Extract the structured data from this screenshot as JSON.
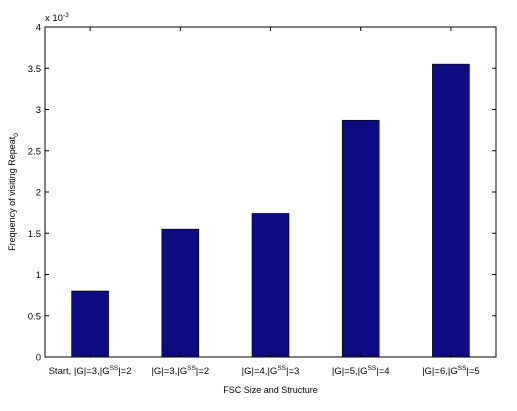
{
  "chart_data": {
    "type": "bar",
    "categories": [
      {
        "base": "Start, |G|=3,|G",
        "sup": "SS",
        "tail": "|=2"
      },
      {
        "base": "|G|=3,|G",
        "sup": "SS",
        "tail": "|=2"
      },
      {
        "base": "|G|=4,|G",
        "sup": "SS",
        "tail": "|=3"
      },
      {
        "base": "|G|=5,|G",
        "sup": "SS",
        "tail": "|=4"
      },
      {
        "base": "|G|=6,|G",
        "sup": "SS",
        "tail": "|=5"
      }
    ],
    "values": [
      0.0008,
      0.00155,
      0.00174,
      0.00287,
      0.00355
    ],
    "ylim": [
      0,
      0.004
    ],
    "ytick_values": [
      0,
      0.5,
      1,
      1.5,
      2,
      2.5,
      3,
      3.5,
      4
    ],
    "ytick_labels": [
      "0",
      "0.5",
      "1",
      "1.5",
      "2",
      "2.5",
      "3",
      "3.5",
      "4"
    ],
    "y_multiplier": {
      "base": "x 10",
      "exp": "-3"
    },
    "xlabel": "FSC Size and Structure",
    "ylabel": {
      "base": "Frequency of visiting Repeat",
      "sub": "0"
    },
    "bar_color": "#0c0c84",
    "grid": false,
    "legend": "none"
  }
}
